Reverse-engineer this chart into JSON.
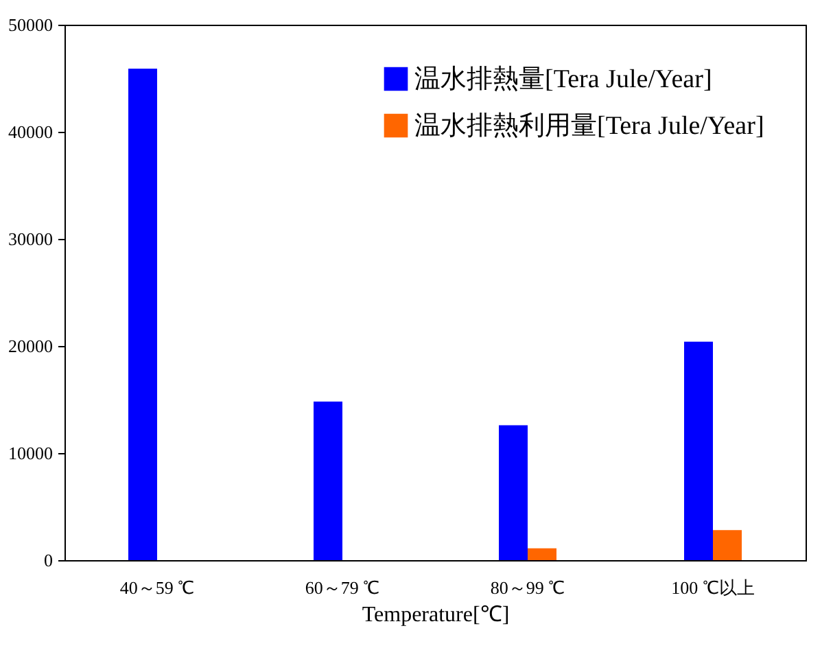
{
  "chart_data": {
    "type": "bar",
    "xlabel": "Temperature[℃]",
    "categories": [
      "40～59 ℃",
      "60～79 ℃",
      "80～99 ℃",
      "100 ℃以上"
    ],
    "series": [
      {
        "name": "温水排熱量[Tera Jule/Year]",
        "color": "#0000ff",
        "values": [
          45900,
          14800,
          12600,
          20400
        ]
      },
      {
        "name": "温水排熱利用量[Tera Jule/Year]",
        "color": "#ff6600",
        "values": [
          0,
          0,
          1100,
          2800
        ]
      }
    ],
    "ylim": [
      0,
      50000
    ],
    "yticks": [
      0,
      10000,
      20000,
      30000,
      40000,
      50000
    ],
    "grid": false,
    "legend": "top right"
  }
}
